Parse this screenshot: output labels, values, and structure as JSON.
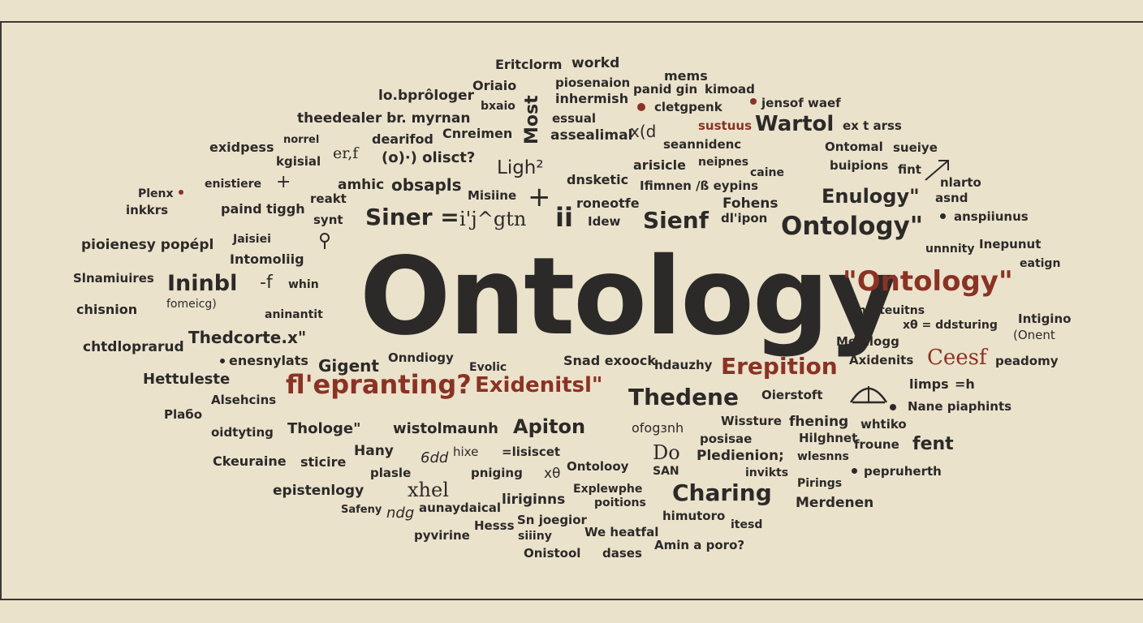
{
  "hero_word": "Ontology",
  "words": [
    "Eritclorm",
    "workd",
    "mems",
    "lo.bprôloger",
    "Oriaio",
    "Most",
    "piosenaion",
    "panid gin",
    "kimoad",
    "inhermish",
    "bxaio",
    "jensof waef",
    "cletgpenk",
    "theedealer br. myrnan",
    "essual",
    "assealimal",
    "Cnreimen",
    "x(d",
    "sustuus",
    "Wartol",
    "ex t arss",
    "norrel",
    "dearifod",
    "seannidenc",
    "Ontomal",
    "sueiye",
    "exidpess",
    "er,f",
    "(o)·) olisct?",
    "Ligh²",
    "kgisial",
    "arisicle",
    "neipnes",
    "buipions",
    "caine",
    "fint",
    "Plenx",
    "enistiere",
    "amhic",
    "obsapls",
    "dnsketic",
    "Ifimnen /ß eypins",
    "nlarto",
    "Enulogy\"",
    "asnd",
    "inkkrs",
    "paind tiggh",
    "Misiine",
    "reakt",
    "roneotfe",
    "Fohens",
    "synt",
    "Siner =",
    "i'j^gtn",
    "ii",
    "Idew",
    "Sienf",
    "dl'ipon",
    "Ontology\"",
    "anspiiunus",
    "pioienesy popépl",
    "Jaisiei",
    "unnnity",
    "Inepunut",
    "Intomoliig",
    "eatign",
    "Slnamiuires",
    "Ininbl",
    "whin",
    "\"Ontology\"",
    "chisnion",
    "fomeicg)",
    "intoteuitns",
    "aninantit",
    "xθ = ddsturing",
    "Intigino",
    "(Onent",
    "Thedcorte.x\"",
    "chtdloprarud",
    "Menllogg",
    "enesnylats",
    "Onndiogy",
    "Snad exoock",
    "hdauzhy",
    "Erepition",
    "Axidenits",
    "Ceesf",
    "peadomy",
    "Gigent",
    "Evolic",
    "Hettuleste",
    "fl'epranting?",
    "Exidenitsl\"",
    "limps",
    "=h",
    "Alsehcins",
    "Thedene",
    "Oierstoft",
    "Nane piaphints",
    "Plaбo",
    "Wissture",
    "fhening",
    "whtiko",
    "oidtyting",
    "Thologe\"",
    "wistolmaunh",
    "Apiton",
    "ofogзnh",
    "posisae",
    "Hilghnet",
    "froune",
    "fent",
    "Hany",
    "6dd",
    "hixe",
    "=lisiscet",
    "Ckeuraine",
    "sticire",
    "Do",
    "Pledienion;",
    "wlesnns",
    "pepruherth",
    "plasle",
    "pniging",
    "xθ",
    "Ontolooy",
    "SAN",
    "invikts",
    "epistenlogy",
    "xhel",
    "Explewphe",
    "Charing",
    "Pirings",
    "liriginns",
    "poitions",
    "Merdenen",
    "Safeny",
    "ndg",
    "aunaydaical",
    "himutoro",
    "itesd",
    "Sn joegior",
    "Hesss",
    "pyvirine",
    "siiiny",
    "We heatfal",
    "Onistool",
    "dases",
    "Amin a poro?"
  ]
}
